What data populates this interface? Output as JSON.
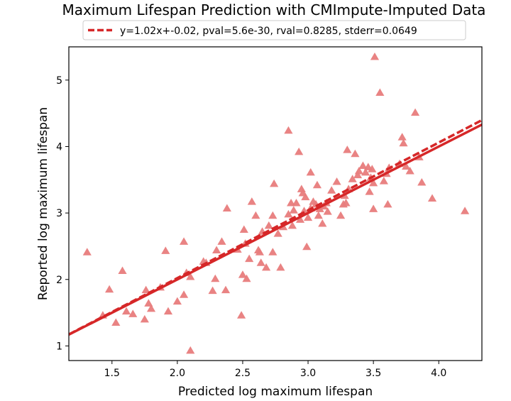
{
  "chart_data": {
    "type": "scatter",
    "title": "Maximum Lifespan Prediction with CMImpute-Imputed Data",
    "xlabel": "Predicted log maximum lifespan",
    "ylabel": "Reported log maximum lifespan",
    "xlim": [
      1.17,
      4.33
    ],
    "ylim": [
      0.78,
      5.5
    ],
    "xticks": [
      1.5,
      2.0,
      2.5,
      3.0,
      3.5,
      4.0
    ],
    "xtick_labels": [
      "1.5",
      "2.0",
      "2.5",
      "3.0",
      "3.5",
      "4.0"
    ],
    "yticks": [
      1,
      2,
      3,
      4,
      5
    ],
    "ytick_labels": [
      "1",
      "2",
      "3",
      "4",
      "5"
    ],
    "grid": false,
    "legend_position": "top-center",
    "legend": {
      "label": "y=1.02x+-0.02, pval=5.6e-30, rval=0.8285, stderr=0.0649",
      "style": "dashed",
      "color": "#d62728"
    },
    "fit_line": {
      "slope": 1.02,
      "intercept": -0.02,
      "color": "#d62728"
    },
    "identity_line": {
      "slope": 1.0,
      "intercept": 0.0,
      "color": "#d62728"
    },
    "marker": {
      "shape": "triangle-up",
      "color": "#e87c7c"
    },
    "points": [
      {
        "x": 1.31,
        "y": 2.4
      },
      {
        "x": 1.43,
        "y": 1.45
      },
      {
        "x": 1.48,
        "y": 1.84
      },
      {
        "x": 1.53,
        "y": 1.34
      },
      {
        "x": 1.58,
        "y": 2.12
      },
      {
        "x": 1.61,
        "y": 1.51
      },
      {
        "x": 1.66,
        "y": 1.47
      },
      {
        "x": 1.75,
        "y": 1.39
      },
      {
        "x": 1.76,
        "y": 1.83
      },
      {
        "x": 1.78,
        "y": 1.63
      },
      {
        "x": 1.8,
        "y": 1.55
      },
      {
        "x": 1.87,
        "y": 1.87
      },
      {
        "x": 1.91,
        "y": 2.42
      },
      {
        "x": 1.93,
        "y": 1.51
      },
      {
        "x": 2.0,
        "y": 1.66
      },
      {
        "x": 2.05,
        "y": 1.76
      },
      {
        "x": 2.05,
        "y": 2.56
      },
      {
        "x": 2.07,
        "y": 2.09
      },
      {
        "x": 2.1,
        "y": 0.92
      },
      {
        "x": 2.1,
        "y": 2.03
      },
      {
        "x": 2.2,
        "y": 2.26
      },
      {
        "x": 2.22,
        "y": 2.24
      },
      {
        "x": 2.27,
        "y": 1.82
      },
      {
        "x": 2.29,
        "y": 2.0
      },
      {
        "x": 2.3,
        "y": 2.43
      },
      {
        "x": 2.34,
        "y": 2.56
      },
      {
        "x": 2.37,
        "y": 1.83
      },
      {
        "x": 2.38,
        "y": 3.06
      },
      {
        "x": 2.46,
        "y": 2.44
      },
      {
        "x": 2.49,
        "y": 1.45
      },
      {
        "x": 2.5,
        "y": 2.06
      },
      {
        "x": 2.51,
        "y": 2.74
      },
      {
        "x": 2.52,
        "y": 2.53
      },
      {
        "x": 2.53,
        "y": 2.0
      },
      {
        "x": 2.55,
        "y": 2.3
      },
      {
        "x": 2.57,
        "y": 3.16
      },
      {
        "x": 2.6,
        "y": 2.95
      },
      {
        "x": 2.62,
        "y": 2.43
      },
      {
        "x": 2.63,
        "y": 2.4
      },
      {
        "x": 2.64,
        "y": 2.24
      },
      {
        "x": 2.65,
        "y": 2.71
      },
      {
        "x": 2.68,
        "y": 2.17
      },
      {
        "x": 2.7,
        "y": 2.8
      },
      {
        "x": 2.73,
        "y": 2.95
      },
      {
        "x": 2.73,
        "y": 2.4
      },
      {
        "x": 2.74,
        "y": 3.43
      },
      {
        "x": 2.77,
        "y": 2.68
      },
      {
        "x": 2.79,
        "y": 2.17
      },
      {
        "x": 2.81,
        "y": 2.78
      },
      {
        "x": 2.85,
        "y": 2.97
      },
      {
        "x": 2.85,
        "y": 4.23
      },
      {
        "x": 2.87,
        "y": 3.14
      },
      {
        "x": 2.88,
        "y": 2.8
      },
      {
        "x": 2.89,
        "y": 3.03
      },
      {
        "x": 2.91,
        "y": 3.14
      },
      {
        "x": 2.93,
        "y": 3.91
      },
      {
        "x": 2.94,
        "y": 2.89
      },
      {
        "x": 2.95,
        "y": 3.35
      },
      {
        "x": 2.96,
        "y": 3.29
      },
      {
        "x": 2.97,
        "y": 3.02
      },
      {
        "x": 2.98,
        "y": 3.23
      },
      {
        "x": 2.99,
        "y": 2.48
      },
      {
        "x": 3.0,
        "y": 2.92
      },
      {
        "x": 3.02,
        "y": 3.6
      },
      {
        "x": 3.02,
        "y": 3.06
      },
      {
        "x": 3.04,
        "y": 3.16
      },
      {
        "x": 3.06,
        "y": 3.12
      },
      {
        "x": 3.07,
        "y": 3.41
      },
      {
        "x": 3.08,
        "y": 2.95
      },
      {
        "x": 3.09,
        "y": 3.05
      },
      {
        "x": 3.11,
        "y": 2.83
      },
      {
        "x": 3.12,
        "y": 3.09
      },
      {
        "x": 3.14,
        "y": 3.14
      },
      {
        "x": 3.15,
        "y": 3.01
      },
      {
        "x": 3.18,
        "y": 3.33
      },
      {
        "x": 3.22,
        "y": 3.46
      },
      {
        "x": 3.25,
        "y": 2.95
      },
      {
        "x": 3.27,
        "y": 3.12
      },
      {
        "x": 3.28,
        "y": 3.25
      },
      {
        "x": 3.29,
        "y": 3.14
      },
      {
        "x": 3.3,
        "y": 3.94
      },
      {
        "x": 3.31,
        "y": 3.35
      },
      {
        "x": 3.34,
        "y": 3.5
      },
      {
        "x": 3.36,
        "y": 3.88
      },
      {
        "x": 3.38,
        "y": 3.56
      },
      {
        "x": 3.39,
        "y": 3.62
      },
      {
        "x": 3.42,
        "y": 3.7
      },
      {
        "x": 3.44,
        "y": 3.6
      },
      {
        "x": 3.46,
        "y": 3.68
      },
      {
        "x": 3.47,
        "y": 3.31
      },
      {
        "x": 3.48,
        "y": 3.52
      },
      {
        "x": 3.49,
        "y": 3.65
      },
      {
        "x": 3.5,
        "y": 3.44
      },
      {
        "x": 3.5,
        "y": 3.05
      },
      {
        "x": 3.51,
        "y": 5.34
      },
      {
        "x": 3.55,
        "y": 4.8
      },
      {
        "x": 3.58,
        "y": 3.47
      },
      {
        "x": 3.6,
        "y": 3.58
      },
      {
        "x": 3.61,
        "y": 3.12
      },
      {
        "x": 3.62,
        "y": 3.67
      },
      {
        "x": 3.7,
        "y": 3.73
      },
      {
        "x": 3.72,
        "y": 4.13
      },
      {
        "x": 3.73,
        "y": 4.04
      },
      {
        "x": 3.75,
        "y": 3.69
      },
      {
        "x": 3.78,
        "y": 3.62
      },
      {
        "x": 3.82,
        "y": 4.5
      },
      {
        "x": 3.85,
        "y": 3.83
      },
      {
        "x": 3.87,
        "y": 3.45
      },
      {
        "x": 3.95,
        "y": 3.21
      },
      {
        "x": 4.2,
        "y": 3.02
      }
    ]
  }
}
